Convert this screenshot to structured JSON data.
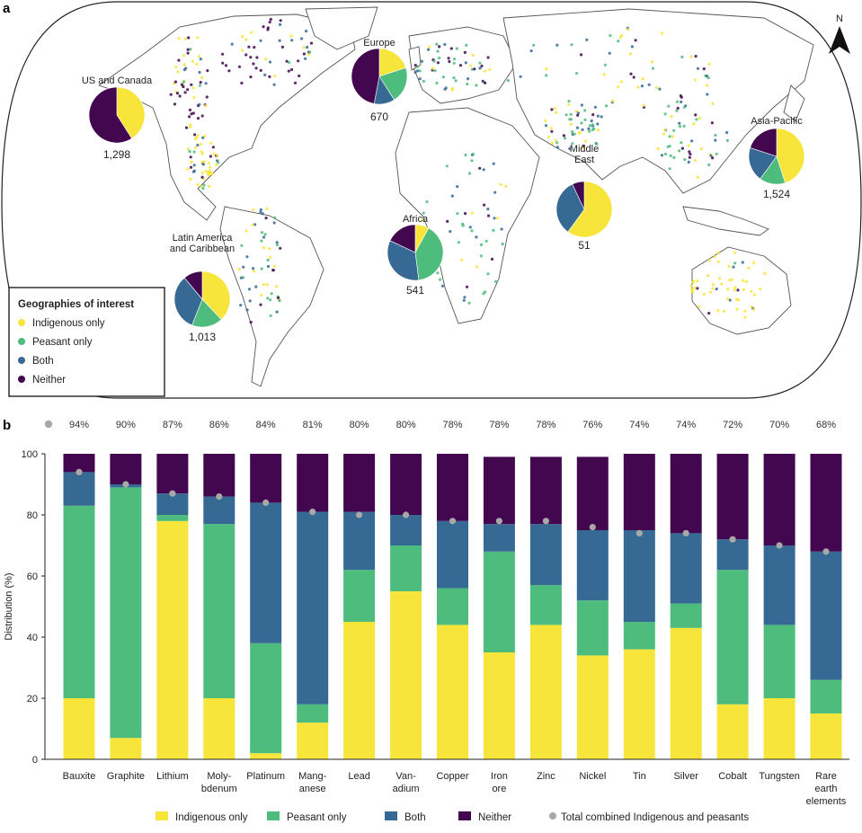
{
  "panels": {
    "map_letter": "a",
    "bar_letter": "b"
  },
  "colors": {
    "indigenous": "#f7e53b",
    "peasant": "#4ebc7c",
    "both": "#366a94",
    "neither": "#42074e",
    "total": "#a8a8a8",
    "land_fill": "#ffffff",
    "land_stroke": "#444444"
  },
  "map": {
    "north_label": "N",
    "legend": {
      "title": "Geographies of interest",
      "items": [
        {
          "label": "Indigenous only",
          "color": "#f7e53b"
        },
        {
          "label": "Peasant only",
          "color": "#4ebc7c"
        },
        {
          "label": "Both",
          "color": "#366a94"
        },
        {
          "label": "Neither",
          "color": "#42074e"
        }
      ]
    },
    "regions": [
      {
        "name": [
          "US and Canada"
        ],
        "count": "1,298",
        "shares": [
          41,
          0,
          0,
          59
        ]
      },
      {
        "name": [
          "Europe"
        ],
        "count": "670",
        "shares": [
          20,
          21,
          12,
          47
        ]
      },
      {
        "name": [
          "Latin America",
          "and Caribbean"
        ],
        "count": "1,013",
        "shares": [
          38,
          18,
          33,
          11
        ]
      },
      {
        "name": [
          "Africa"
        ],
        "count": "541",
        "shares": [
          8,
          40,
          34,
          18
        ]
      },
      {
        "name": [
          "Middle",
          "East"
        ],
        "count": "51",
        "shares": [
          60,
          0,
          33,
          7
        ]
      },
      {
        "name": [
          "Asia-Pacific"
        ],
        "count": "1,524",
        "shares": [
          45,
          15,
          20,
          20
        ]
      }
    ]
  },
  "chart_data": {
    "type": "bar",
    "stacked": true,
    "categories": [
      [
        "Bauxite"
      ],
      [
        "Graphite"
      ],
      [
        "Lithium"
      ],
      [
        "Moly-",
        "bdenum"
      ],
      [
        "Platinum"
      ],
      [
        "Mang-",
        "anese"
      ],
      [
        "Lead"
      ],
      [
        "Van-",
        "adium"
      ],
      [
        "Copper"
      ],
      [
        "Iron",
        "ore"
      ],
      [
        "Zinc"
      ],
      [
        "Nickel"
      ],
      [
        "Tin"
      ],
      [
        "Silver"
      ],
      [
        "Cobalt"
      ],
      [
        "Tungsten"
      ],
      [
        "Rare",
        "earth",
        "elements"
      ]
    ],
    "series": [
      {
        "name": "Indigenous only",
        "values": [
          20,
          7,
          78,
          20,
          2,
          12,
          45,
          55,
          44,
          35,
          44,
          34,
          36,
          43,
          18,
          20,
          15
        ]
      },
      {
        "name": "Peasant only",
        "values": [
          63,
          82,
          2,
          57,
          36,
          6,
          17,
          15,
          12,
          33,
          13,
          18,
          9,
          8,
          44,
          24,
          11
        ]
      },
      {
        "name": "Both",
        "values": [
          11,
          1,
          7,
          9,
          46,
          63,
          19,
          10,
          22,
          9,
          20,
          23,
          30,
          23,
          10,
          26,
          42
        ]
      },
      {
        "name": "Neither",
        "values": [
          6,
          10,
          13,
          14,
          16,
          19,
          19,
          20,
          22,
          22,
          22,
          24,
          25,
          26,
          28,
          30,
          32
        ]
      }
    ],
    "total_combined": {
      "name": "Total combined Indigenous and peasants",
      "values": [
        94,
        90,
        87,
        86,
        84,
        81,
        80,
        80,
        78,
        78,
        78,
        76,
        74,
        74,
        72,
        70,
        68
      ],
      "labels": [
        "94%",
        "90%",
        "87%",
        "86%",
        "84%",
        "81%",
        "80%",
        "80%",
        "78%",
        "78%",
        "78%",
        "76%",
        "74%",
        "74%",
        "72%",
        "70%",
        "68%"
      ]
    },
    "ylabel": "Distribution (%)",
    "ylim": [
      0,
      100
    ],
    "yticks": [
      0,
      20,
      40,
      60,
      80,
      100
    ],
    "legend_position": "bottom",
    "grid": false
  }
}
